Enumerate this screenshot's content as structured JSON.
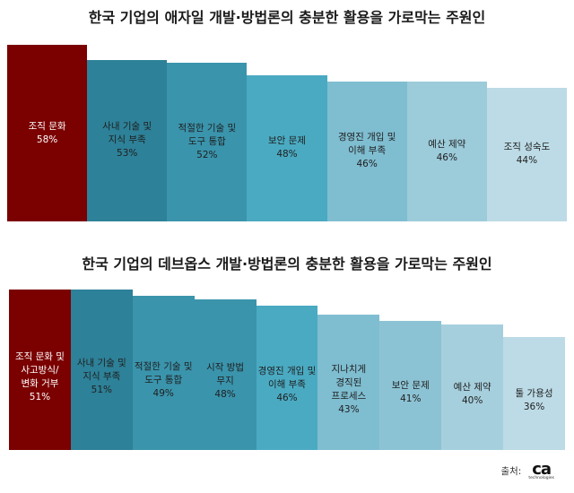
{
  "chart_data": [
    {
      "type": "bar",
      "title": "한국 기업의 애자일 개발·방법론의 충분한 활용을 가로막는 주원인",
      "categories": [
        "조직 문화",
        "사내 기술 및\n지식 부족",
        "적절한 기술 및\n도구 통합",
        "보안 문제",
        "경영진 개입 및\n이해 부족",
        "예산 제약",
        "조직 성숙도"
      ],
      "values": [
        58,
        53,
        52,
        48,
        46,
        46,
        44
      ],
      "value_labels": [
        "58%",
        "53%",
        "52%",
        "48%",
        "46%",
        "46%",
        "44%"
      ],
      "colors": [
        "#7b0000",
        "#2d8198",
        "#3a94ac",
        "#4aaac2",
        "#7fbdd0",
        "#9ccbda",
        "#bcdbe6"
      ],
      "label_colors": [
        "#ffffff",
        "#1f1f1f",
        "#1f1f1f",
        "#1f1f1f",
        "#1f1f1f",
        "#1f1f1f",
        "#1f1f1f"
      ]
    },
    {
      "type": "bar",
      "title": "한국 기업의 데브옵스 개발·방법론의 충분한 활용을 가로막는 주원인",
      "categories": [
        "조직 문화 및\n사고방식/\n변화 거부",
        "사내 기술 및\n지식 부족",
        "적절한 기술 및\n도구 통합",
        "시작 방법\n무지",
        "경영진 개입 및\n이해 부족",
        "지나치게\n경직된\n프로세스",
        "보안 문제",
        "예산 제약",
        "툴 가용성"
      ],
      "values": [
        51,
        51,
        49,
        48,
        46,
        43,
        41,
        40,
        36
      ],
      "value_labels": [
        "51%",
        "51%",
        "49%",
        "48%",
        "46%",
        "43%",
        "41%",
        "40%",
        "36%"
      ],
      "colors": [
        "#7b0000",
        "#2d8198",
        "#3a94ac",
        "#3a94ac",
        "#4aaac2",
        "#7fbdd0",
        "#8cc3d4",
        "#a6cfdd",
        "#bcdbe6"
      ],
      "label_colors": [
        "#ffffff",
        "#1f1f1f",
        "#1f1f1f",
        "#1f1f1f",
        "#1f1f1f",
        "#1f1f1f",
        "#1f1f1f",
        "#1f1f1f",
        "#1f1f1f"
      ]
    }
  ],
  "source": {
    "label": "출처:",
    "logo_text": "ca",
    "logo_sub": "technologies"
  }
}
